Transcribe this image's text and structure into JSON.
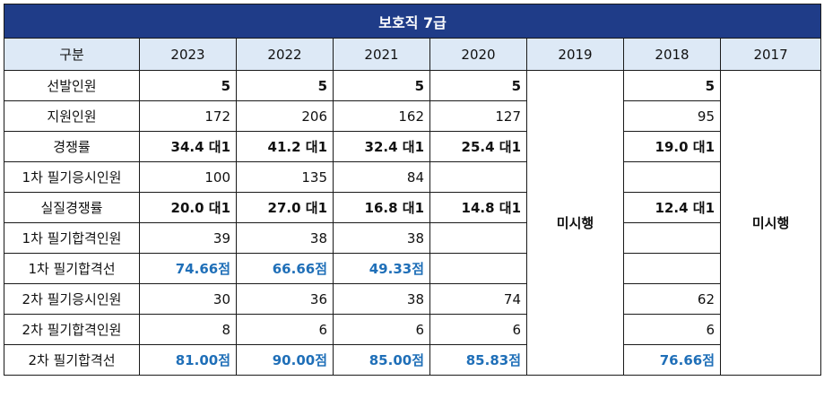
{
  "table": {
    "title": "보호직 7급",
    "corner": "구분",
    "years": [
      "2023",
      "2022",
      "2021",
      "2020",
      "2019",
      "2018",
      "2017"
    ],
    "not_conducted": "미시행",
    "rows": [
      {
        "label": "선발인원",
        "style": "bold",
        "values": [
          "5",
          "5",
          "5",
          "5",
          "5"
        ]
      },
      {
        "label": "지원인원",
        "style": "normal",
        "values": [
          "172",
          "206",
          "162",
          "127",
          "95"
        ]
      },
      {
        "label": "경쟁률",
        "style": "bold",
        "values": [
          "34.4 대1",
          "41.2 대1",
          "32.4 대1",
          "25.4 대1",
          "19.0 대1"
        ]
      },
      {
        "label": "1차 필기응시인원",
        "style": "normal",
        "values": [
          "100",
          "135",
          "84",
          "",
          ""
        ]
      },
      {
        "label": "실질경쟁률",
        "style": "bold",
        "values": [
          "20.0 대1",
          "27.0 대1",
          "16.8 대1",
          "14.8 대1",
          "12.4 대1"
        ]
      },
      {
        "label": "1차 필기합격인원",
        "style": "normal",
        "values": [
          "39",
          "38",
          "38",
          "",
          ""
        ]
      },
      {
        "label": "1차 필기합격선",
        "style": "score",
        "values": [
          "74.66점",
          "66.66점",
          "49.33점",
          "",
          ""
        ]
      },
      {
        "label": "2차 필기응시인원",
        "style": "normal",
        "values": [
          "30",
          "36",
          "38",
          "74",
          "62"
        ]
      },
      {
        "label": "2차 필기합격인원",
        "style": "normal",
        "values": [
          "8",
          "6",
          "6",
          "6",
          "6"
        ]
      },
      {
        "label": "2차 필기합격선",
        "style": "score",
        "values": [
          "81.00점",
          "90.00점",
          "85.00점",
          "85.83점",
          "76.66점"
        ]
      }
    ]
  },
  "colors": {
    "title_bg": "#1f3c88",
    "header_bg": "#dde9f6",
    "score_text": "#1f6fb8"
  }
}
